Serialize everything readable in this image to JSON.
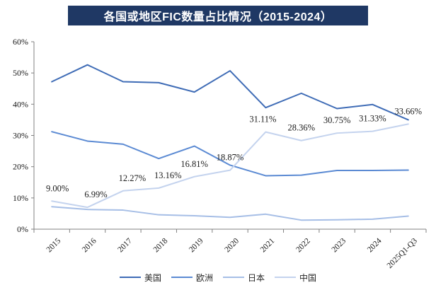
{
  "title": {
    "text": "各国或地区FIC数量占比情况（2015-2024）",
    "bg_color": "#1F3864",
    "text_color": "#FFFFFF"
  },
  "chart_data": {
    "type": "line",
    "categories": [
      "2015",
      "2016",
      "2017",
      "2018",
      "2019",
      "2020",
      "2021",
      "2022",
      "2023",
      "2024",
      "2025Q1-Q3"
    ],
    "series": [
      {
        "id": "usa",
        "name": "美国",
        "color": "#3F6CB6",
        "values": [
          47.2,
          52.6,
          47.2,
          46.9,
          43.9,
          50.7,
          38.9,
          43.5,
          38.6,
          39.9,
          35.0
        ]
      },
      {
        "id": "europe",
        "name": "欧洲",
        "color": "#5B8AD3",
        "values": [
          31.2,
          28.2,
          27.2,
          22.6,
          26.6,
          20.5,
          17.1,
          17.3,
          18.8,
          18.8,
          18.9
        ]
      },
      {
        "id": "japan",
        "name": "日本",
        "color": "#A6BEE6",
        "values": [
          7.2,
          6.3,
          6.1,
          4.6,
          4.3,
          3.8,
          4.8,
          2.9,
          3.0,
          3.2,
          4.2
        ]
      },
      {
        "id": "china",
        "name": "中国",
        "color": "#C4D3EE",
        "values": [
          9.0,
          6.99,
          12.27,
          13.16,
          16.81,
          18.87,
          31.11,
          28.36,
          30.75,
          31.33,
          33.66
        ],
        "data_labels": [
          "9.00%",
          "6.99%",
          "12.27%",
          "13.16%",
          "16.81%",
          "18.87%",
          "31.11%",
          "28.36%",
          "30.75%",
          "31.33%",
          "33.66%"
        ]
      }
    ],
    "ylim": [
      0,
      60
    ],
    "ytick_step": 10,
    "ytick_labels": [
      "0%",
      "10%",
      "20%",
      "30%",
      "40%",
      "50%",
      "60%"
    ],
    "xlabel": "",
    "ylabel": "",
    "grid": false,
    "legend_position": "bottom",
    "axis_color": "#808080",
    "label_color": "#1A1A1A"
  }
}
